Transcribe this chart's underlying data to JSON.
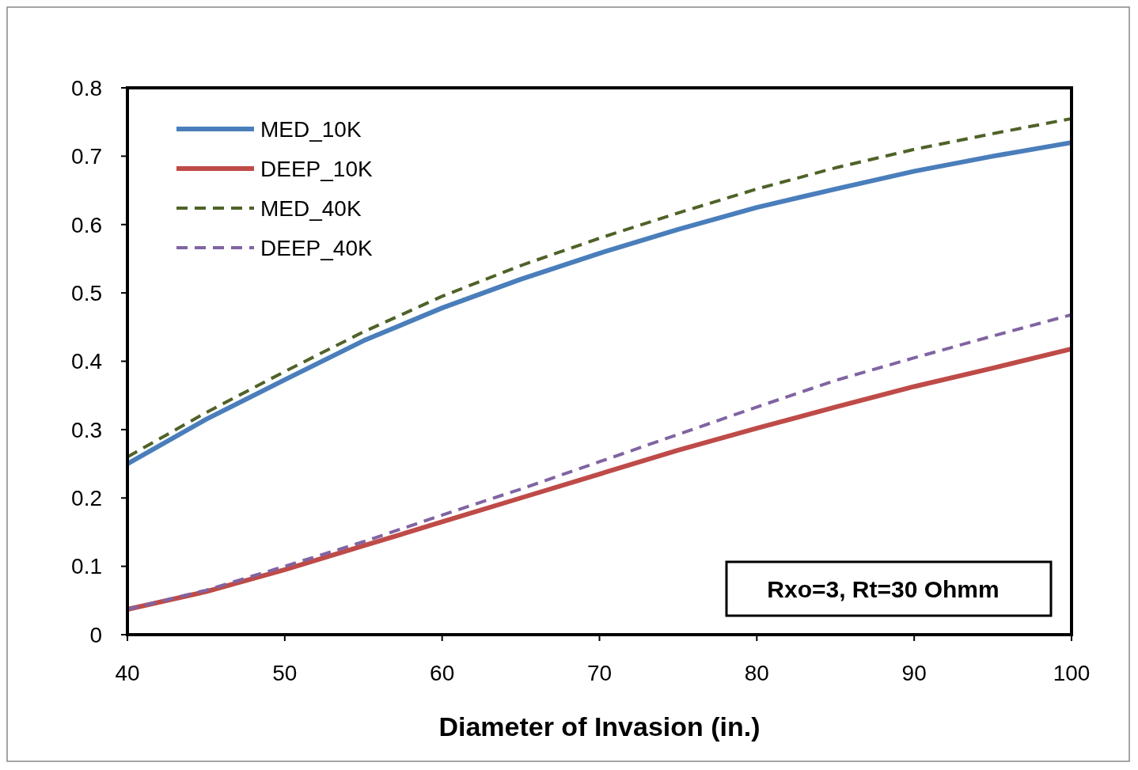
{
  "chart_data": {
    "type": "line",
    "xlabel": "Diameter of Invasion (in.)",
    "xlim": [
      40,
      100
    ],
    "xticks": [
      40,
      50,
      60,
      70,
      80,
      90,
      100
    ],
    "ylim": [
      0,
      0.8
    ],
    "yticks": [
      0,
      0.1,
      0.2,
      0.3,
      0.4,
      0.5,
      0.6,
      0.7,
      0.8
    ],
    "grid": false,
    "legend": "top left",
    "marker": "none",
    "x": [
      40,
      45,
      50,
      55,
      60,
      65,
      70,
      75,
      80,
      85,
      90,
      95,
      100
    ],
    "series": [
      {
        "name": "MED_10K",
        "color": "#4a7ebb",
        "line_style": "solid",
        "values": [
          0.25,
          0.315,
          0.373,
          0.43,
          0.478,
          0.52,
          0.558,
          0.593,
          0.625,
          0.652,
          0.678,
          0.7,
          0.72
        ]
      },
      {
        "name": "DEEP_10K",
        "color": "#be4b48",
        "line_style": "solid",
        "values": [
          0.037,
          0.063,
          0.095,
          0.13,
          0.165,
          0.2,
          0.235,
          0.27,
          0.302,
          0.333,
          0.363,
          0.39,
          0.418
        ]
      },
      {
        "name": "MED_40K",
        "color": "#4f6228",
        "line_style": "dashed",
        "values": [
          0.26,
          0.325,
          0.385,
          0.443,
          0.495,
          0.54,
          0.58,
          0.617,
          0.652,
          0.683,
          0.71,
          0.733,
          0.755
        ]
      },
      {
        "name": "DEEP_40K",
        "color": "#8064a2",
        "line_style": "dashed",
        "values": [
          0.037,
          0.065,
          0.1,
          0.136,
          0.175,
          0.213,
          0.253,
          0.293,
          0.333,
          0.372,
          0.405,
          0.437,
          0.468
        ]
      }
    ],
    "annotations": [
      "Rxo=3, Rt=30 Ohmm"
    ]
  }
}
